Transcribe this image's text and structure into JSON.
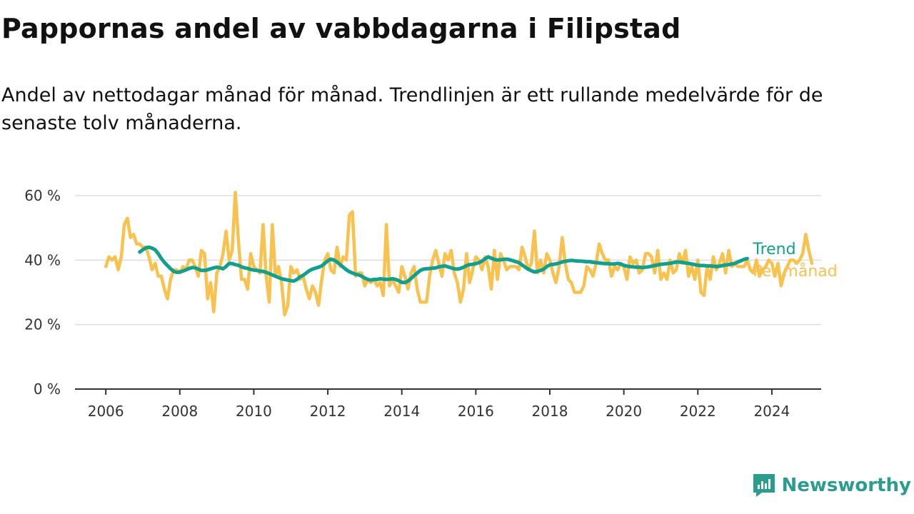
{
  "header": {
    "title": "Pappornas andel av vabbdagarna i Filipstad",
    "subtitle": "Andel av nettodagar månad för månad. Trendlinjen är ett rullande medelvärde för de senaste tolv månaderna."
  },
  "brand": {
    "name": "Newsworthy",
    "icon": "newsworthy-logo-icon"
  },
  "colors": {
    "trend": "#12a08e",
    "monthly": "#f9c14e",
    "grid": "#dddddd",
    "axis": "#333333"
  },
  "chart_data": {
    "type": "line",
    "title": "Pappornas andel av vabbdagarna i Filipstad",
    "subtitle": "Andel av nettodagar månad för månad. Trendlinjen är ett rullande medelvärde för de senaste tolv månaderna.",
    "xlabel": "",
    "ylabel": "",
    "xlim": [
      "2005-03",
      "2025-05"
    ],
    "ylim": [
      0,
      60
    ],
    "yticks": [
      0,
      20,
      40,
      60
    ],
    "ytick_labels": [
      "0 %",
      "20 %",
      "40 %",
      "60 %"
    ],
    "xtick_labels": [
      "2006",
      "2008",
      "2010",
      "2012",
      "2014",
      "2016",
      "2018",
      "2020",
      "2022",
      "2024"
    ],
    "grid": true,
    "legend": "right-inline",
    "series": [
      {
        "name": "Per månad",
        "start": "2006-01",
        "values": [
          38,
          41,
          40,
          41,
          37,
          41,
          51,
          53,
          47,
          48,
          45,
          45,
          44,
          44,
          41,
          37,
          39,
          35,
          35,
          31,
          28,
          34,
          37,
          37,
          36,
          38,
          37,
          40,
          40,
          38,
          35,
          43,
          42,
          28,
          33,
          24,
          36,
          38,
          42,
          49,
          40,
          43,
          61,
          46,
          34,
          34,
          31,
          42,
          38,
          37,
          36,
          51,
          35,
          27,
          51,
          35,
          38,
          33,
          23,
          26,
          38,
          36,
          37,
          34,
          35,
          31,
          28,
          32,
          30,
          26,
          34,
          40,
          42,
          37,
          36,
          44,
          38,
          41,
          40,
          54,
          55,
          35,
          36,
          36,
          32,
          34,
          33,
          34,
          32,
          33,
          29,
          51,
          32,
          34,
          32,
          30,
          38,
          35,
          31,
          36,
          38,
          31,
          27,
          27,
          27,
          35,
          40,
          43,
          39,
          35,
          42,
          40,
          43,
          36,
          33,
          27,
          31,
          42,
          33,
          37,
          41,
          40,
          37,
          41,
          38,
          31,
          43,
          34,
          42,
          40,
          37,
          38,
          38,
          38,
          37,
          44,
          41,
          37,
          39,
          49,
          36,
          40,
          36,
          42,
          40,
          36,
          33,
          38,
          47,
          39,
          34,
          33,
          30,
          30,
          30,
          32,
          38,
          37,
          35,
          39,
          45,
          42,
          40,
          40,
          35,
          38,
          37,
          39,
          38,
          34,
          41,
          39,
          40,
          36,
          37,
          42,
          42,
          41,
          36,
          43,
          34,
          36,
          34,
          40,
          36,
          37,
          42,
          39,
          43,
          35,
          38,
          34,
          40,
          30,
          29,
          38,
          34,
          41,
          37,
          39,
          42,
          36,
          43,
          38,
          39,
          38,
          38,
          38,
          40,
          37,
          36,
          40,
          35,
          37,
          38,
          40,
          39,
          35,
          39,
          32,
          36,
          38,
          40,
          40,
          39,
          40,
          42,
          48,
          43,
          39
        ]
      },
      {
        "name": "Trend",
        "start": "2006-12",
        "values": [
          42.5,
          43.2,
          43.8,
          44.0,
          43.7,
          43.2,
          42.0,
          40.5,
          39.3,
          38.3,
          37.3,
          36.5,
          36.2,
          36.3,
          36.6,
          37.0,
          37.4,
          37.7,
          37.6,
          37.2,
          36.8,
          36.8,
          37.0,
          37.3,
          37.6,
          37.8,
          37.6,
          37.3,
          38.0,
          39.0,
          38.9,
          38.6,
          38.4,
          37.9,
          37.6,
          37.4,
          37.1,
          36.9,
          36.8,
          36.6,
          36.5,
          36.2,
          35.8,
          35.4,
          35.0,
          34.6,
          34.2,
          34.0,
          33.8,
          33.6,
          33.5,
          34.0,
          34.8,
          35.3,
          36.0,
          36.7,
          37.2,
          37.5,
          37.8,
          38.2,
          39.0,
          39.8,
          40.3,
          40.0,
          39.4,
          38.6,
          37.8,
          37.0,
          36.4,
          36.0,
          35.6,
          35.4,
          35.0,
          34.4,
          34.0,
          33.8,
          34.0,
          34.0,
          34.2,
          34.1,
          34.0,
          34.1,
          34.2,
          34.0,
          33.6,
          33.1,
          33.0,
          33.5,
          34.3,
          35.2,
          36.0,
          36.8,
          37.2,
          37.3,
          37.4,
          37.5,
          37.6,
          37.9,
          38.1,
          38.2,
          37.9,
          37.6,
          37.3,
          37.2,
          37.4,
          37.8,
          38.3,
          38.6,
          38.7,
          38.9,
          39.2,
          39.7,
          40.4,
          41.0,
          40.6,
          40.2,
          40.0,
          40.1,
          40.2,
          40.3,
          40.1,
          39.8,
          39.5,
          39.2,
          38.5,
          37.8,
          37.2,
          36.7,
          36.3,
          36.5,
          36.8,
          37.2,
          38.0,
          38.5,
          38.7,
          38.8,
          39.1,
          39.4,
          39.6,
          39.8,
          39.9,
          39.8,
          39.7,
          39.7,
          39.6,
          39.5,
          39.5,
          39.3,
          39.2,
          39.1,
          39.0,
          38.9,
          38.9,
          38.8,
          38.8,
          39.0,
          38.8,
          38.4,
          38.1,
          38.0,
          37.9,
          37.8,
          37.8,
          37.7,
          37.8,
          37.9,
          38.1,
          38.3,
          38.5,
          38.7,
          38.8,
          38.9,
          39.0,
          39.2,
          39.4,
          39.4,
          39.3,
          39.1,
          39.0,
          38.8,
          38.6,
          38.4,
          38.3,
          38.3,
          38.2,
          38.2,
          38.1,
          38.0,
          38.1,
          38.3,
          38.5,
          38.6,
          38.8,
          39.0,
          39.4,
          39.8,
          40.2,
          40.5
        ]
      }
    ]
  }
}
